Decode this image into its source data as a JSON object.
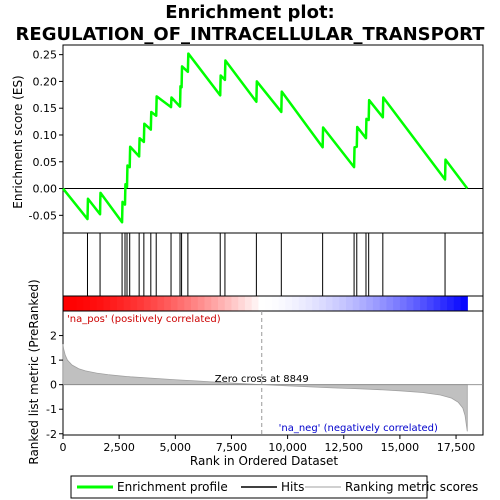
{
  "chart_data": {
    "type": "line",
    "title_lines": [
      "Enrichment plot:",
      "REGULATION_OF_INTRACELLULAR_TRANSPORT"
    ],
    "xlabel": "Rank in Ordered Dataset",
    "ylabel_top": "Enrichment score (ES)",
    "ylabel_bottom": "Ranked list metric (PreRanked)",
    "x_max": 18000,
    "xlim": [
      0,
      18700
    ],
    "x_ticks": [
      0,
      2500,
      5000,
      7500,
      10000,
      12500,
      15000,
      17500
    ],
    "x_tick_labels": [
      "0",
      "2,500",
      "5,000",
      "7,500",
      "10,000",
      "12,500",
      "15,000",
      "17,500"
    ],
    "es_ylim": [
      -0.083,
      0.268
    ],
    "es_ticks": [
      -0.05,
      0.0,
      0.05,
      0.1,
      0.15,
      0.2,
      0.25
    ],
    "es_tick_labels": [
      "-0.05",
      "0.00",
      "0.05",
      "0.10",
      "0.15",
      "0.20",
      "0.25"
    ],
    "metric_ylim": [
      -2.05,
      3.0
    ],
    "metric_ticks": [
      -2,
      -1,
      0,
      1,
      2
    ],
    "metric_tick_labels": [
      "-2",
      "-1",
      "0",
      "1",
      "2"
    ],
    "zero_cross": 8849,
    "zero_cross_label": "Zero cross at 8849",
    "pos_label": "'na_pos' (positively correlated)",
    "neg_label": "'na_neg' (negatively correlated)",
    "series": [
      {
        "name": "Enrichment profile",
        "color": "#00ff00",
        "points": [
          [
            0,
            0.0
          ],
          [
            1090,
            -0.057
          ],
          [
            1100,
            -0.04
          ],
          [
            1110,
            -0.019
          ],
          [
            1650,
            -0.048
          ],
          [
            1660,
            -0.023
          ],
          [
            1670,
            -0.008
          ],
          [
            2630,
            -0.063
          ],
          [
            2640,
            -0.044
          ],
          [
            2650,
            -0.025
          ],
          [
            2760,
            -0.03
          ],
          [
            2770,
            -0.01
          ],
          [
            2780,
            0.008
          ],
          [
            2850,
            0.003
          ],
          [
            2860,
            0.025
          ],
          [
            2870,
            0.043
          ],
          [
            2970,
            0.04
          ],
          [
            2980,
            0.06
          ],
          [
            2990,
            0.078
          ],
          [
            3390,
            0.06
          ],
          [
            3400,
            0.078
          ],
          [
            3410,
            0.094
          ],
          [
            3600,
            0.087
          ],
          [
            3610,
            0.104
          ],
          [
            3620,
            0.121
          ],
          [
            3910,
            0.11
          ],
          [
            3920,
            0.127
          ],
          [
            3930,
            0.143
          ],
          [
            4150,
            0.136
          ],
          [
            4160,
            0.153
          ],
          [
            4170,
            0.172
          ],
          [
            4810,
            0.152
          ],
          [
            4820,
            0.162
          ],
          [
            4830,
            0.17
          ],
          [
            5210,
            0.153
          ],
          [
            5220,
            0.17
          ],
          [
            5230,
            0.191
          ],
          [
            5280,
            0.189
          ],
          [
            5290,
            0.209
          ],
          [
            5300,
            0.228
          ],
          [
            5560,
            0.218
          ],
          [
            5570,
            0.236
          ],
          [
            5580,
            0.252
          ],
          [
            7000,
            0.174
          ],
          [
            7010,
            0.194
          ],
          [
            7020,
            0.211
          ],
          [
            7210,
            0.203
          ],
          [
            7220,
            0.222
          ],
          [
            7230,
            0.239
          ],
          [
            8610,
            0.162
          ],
          [
            8620,
            0.181
          ],
          [
            8630,
            0.2
          ],
          [
            9720,
            0.143
          ],
          [
            9730,
            0.162
          ],
          [
            9740,
            0.181
          ],
          [
            11560,
            0.077
          ],
          [
            11570,
            0.096
          ],
          [
            11580,
            0.114
          ],
          [
            12960,
            0.04
          ],
          [
            12970,
            0.059
          ],
          [
            12980,
            0.077
          ],
          [
            13080,
            0.078
          ],
          [
            13090,
            0.096
          ],
          [
            13100,
            0.115
          ],
          [
            13490,
            0.094
          ],
          [
            13500,
            0.112
          ],
          [
            13510,
            0.13
          ],
          [
            13610,
            0.128
          ],
          [
            13620,
            0.146
          ],
          [
            13630,
            0.165
          ],
          [
            14240,
            0.133
          ],
          [
            14250,
            0.151
          ],
          [
            14260,
            0.17
          ],
          [
            17010,
            0.017
          ],
          [
            17020,
            0.035
          ],
          [
            17030,
            0.054
          ],
          [
            18000,
            0.0
          ]
        ]
      }
    ],
    "hits": [
      1090,
      1650,
      2630,
      2760,
      2850,
      2970,
      3390,
      3600,
      3910,
      4150,
      4810,
      5210,
      5280,
      5560,
      7000,
      7210,
      8610,
      9720,
      11560,
      12960,
      13080,
      13490,
      13610,
      14240,
      17010
    ],
    "metric_curve": [
      [
        0,
        1.65
      ],
      [
        30,
        1.45
      ],
      [
        100,
        1.2
      ],
      [
        200,
        1.0
      ],
      [
        400,
        0.8
      ],
      [
        700,
        0.65
      ],
      [
        1000,
        0.56
      ],
      [
        1500,
        0.47
      ],
      [
        2000,
        0.41
      ],
      [
        2500,
        0.36
      ],
      [
        3000,
        0.32
      ],
      [
        4000,
        0.26
      ],
      [
        5000,
        0.2
      ],
      [
        6000,
        0.15
      ],
      [
        7000,
        0.09
      ],
      [
        8000,
        0.04
      ],
      [
        8849,
        0.0
      ],
      [
        10000,
        -0.05
      ],
      [
        11000,
        -0.09
      ],
      [
        12000,
        -0.13
      ],
      [
        13000,
        -0.16
      ],
      [
        14000,
        -0.2
      ],
      [
        15000,
        -0.25
      ],
      [
        16000,
        -0.32
      ],
      [
        16800,
        -0.42
      ],
      [
        17300,
        -0.55
      ],
      [
        17600,
        -0.72
      ],
      [
        17800,
        -0.95
      ],
      [
        17900,
        -1.25
      ],
      [
        18000,
        -1.9
      ]
    ],
    "legend": [
      {
        "label": "Enrichment profile",
        "color": "#00ff00"
      },
      {
        "label": "Hits",
        "color": "#000000"
      },
      {
        "label": "Ranking metric scores",
        "color": "#c0c0c0"
      }
    ],
    "bar_colors": {
      "start": "#ff0000",
      "mid": "#ffffff",
      "end": "#0000ff"
    }
  }
}
